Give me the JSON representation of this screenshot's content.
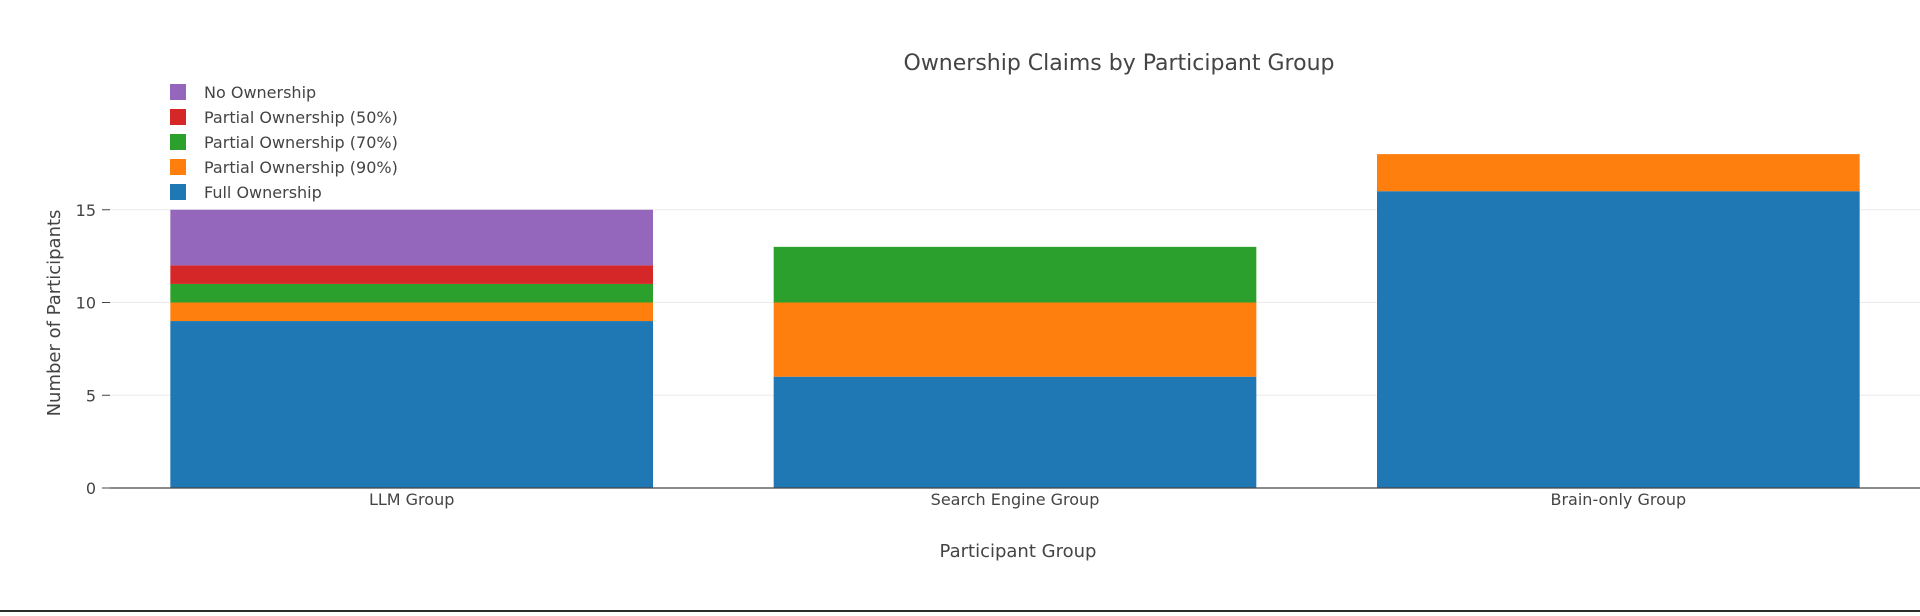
{
  "chart_data": {
    "type": "bar",
    "stacked": true,
    "title": "Ownership Claims by Participant Group",
    "xlabel": "Participant Group",
    "ylabel": "Number of Participants",
    "categories": [
      "LLM Group",
      "Search Engine Group",
      "Brain-only Group"
    ],
    "ylim": [
      0,
      18
    ],
    "yticks": [
      0,
      5,
      10,
      15
    ],
    "grid": true,
    "legend_position": "top-left",
    "series": [
      {
        "name": "Full Ownership",
        "color": "#1f77b4",
        "values": [
          9,
          6,
          16
        ]
      },
      {
        "name": "Partial Ownership (90%)",
        "color": "#ff7f0e",
        "values": [
          1,
          4,
          2
        ]
      },
      {
        "name": "Partial Ownership (70%)",
        "color": "#2ca02c",
        "values": [
          1,
          3,
          0
        ]
      },
      {
        "name": "Partial Ownership (50%)",
        "color": "#d62728",
        "values": [
          1,
          0,
          0
        ]
      },
      {
        "name": "No Ownership",
        "color": "#9467bd",
        "values": [
          3,
          0,
          0
        ]
      }
    ]
  }
}
